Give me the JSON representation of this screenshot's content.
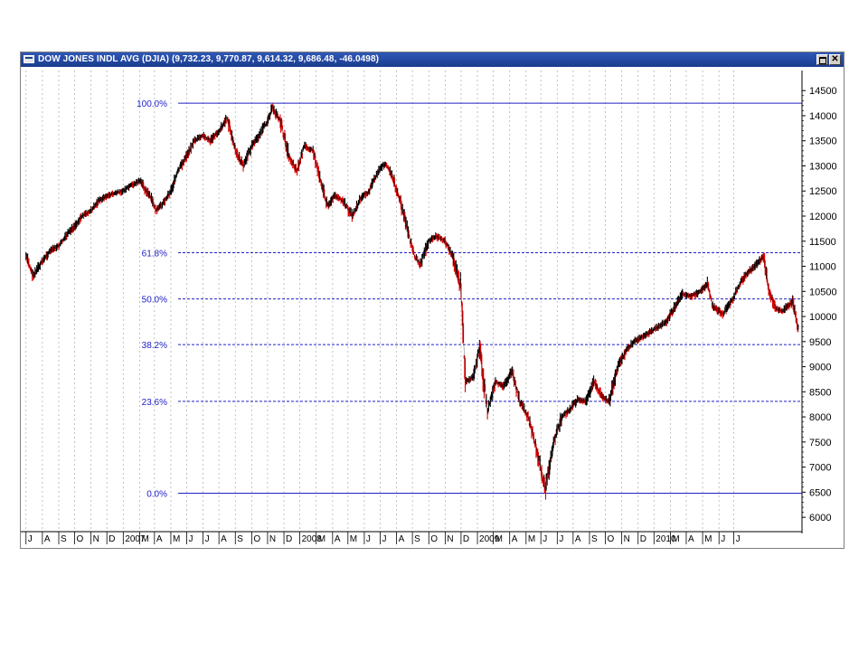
{
  "window": {
    "title": "DOW JONES INDL AVG (DJIA) (9,732.23, 9,770.87, 9,614.32, 9,686.48, -46.0498)",
    "restore_icon": "restore-window-icon",
    "close_icon": "close-icon",
    "close_glyph": "✕"
  },
  "colors": {
    "title_bar": "#1c3c8e",
    "up_candle": "#000000",
    "down_candle": "#e00000",
    "fib_line": "#2020c8",
    "fib_label": "#2020c8",
    "grid": "#b4b4b4"
  },
  "chart_data": {
    "type": "line",
    "title": "",
    "xlabel": "",
    "ylabel": "",
    "ylim": [
      5750,
      14900
    ],
    "yticks": [
      6000,
      6500,
      7000,
      7500,
      8000,
      8500,
      9000,
      9500,
      10000,
      10500,
      11000,
      11500,
      12000,
      12500,
      13000,
      13500,
      14000,
      14500
    ],
    "x_tick_labels": [
      "J",
      "A",
      "S",
      "O",
      "N",
      "D",
      "2007",
      "M",
      "A",
      "M",
      "J",
      "J",
      "A",
      "S",
      "O",
      "N",
      "D",
      "2008",
      "M",
      "A",
      "M",
      "J",
      "J",
      "A",
      "S",
      "O",
      "N",
      "D",
      "2009",
      "M",
      "A",
      "M",
      "J",
      "J",
      "A",
      "S",
      "O",
      "N",
      "D",
      "2010",
      "M",
      "A",
      "M",
      "J",
      "J"
    ],
    "grid": "vertical dashed at each month",
    "fib_levels": [
      {
        "label": "100.0%",
        "value": 14250,
        "style": "solid"
      },
      {
        "label": "61.8%",
        "value": 11270,
        "style": "dashed"
      },
      {
        "label": "50.0%",
        "value": 10350,
        "style": "dashed"
      },
      {
        "label": "38.2%",
        "value": 9440,
        "style": "dashed"
      },
      {
        "label": "23.6%",
        "value": 8310,
        "style": "dashed"
      },
      {
        "label": "0.0%",
        "value": 6480,
        "style": "solid"
      }
    ],
    "series": [
      {
        "x": [
          "2006-07-01",
          "2006-07-15",
          "2006-08-01",
          "2006-08-15",
          "2006-09-01",
          "2006-09-15",
          "2006-10-01",
          "2006-10-15",
          "2006-11-01",
          "2006-11-15",
          "2006-12-01",
          "2006-12-15",
          "2007-01-01",
          "2007-01-15",
          "2007-02-01",
          "2007-02-20",
          "2007-03-05",
          "2007-03-20",
          "2007-04-01",
          "2007-04-15",
          "2007-05-01",
          "2007-05-15",
          "2007-06-01",
          "2007-06-15",
          "2007-07-01",
          "2007-07-17",
          "2007-08-01",
          "2007-08-16",
          "2007-09-01",
          "2007-09-15",
          "2007-10-01",
          "2007-10-10",
          "2007-10-25",
          "2007-11-10",
          "2007-11-26",
          "2007-12-10",
          "2007-12-26",
          "2008-01-10",
          "2008-01-22",
          "2008-02-05",
          "2008-02-20",
          "2008-03-10",
          "2008-03-25",
          "2008-04-10",
          "2008-04-25",
          "2008-05-10",
          "2008-05-20",
          "2008-06-05",
          "2008-06-20",
          "2008-07-05",
          "2008-07-15",
          "2008-08-01",
          "2008-08-15",
          "2008-09-01",
          "2008-09-15",
          "2008-09-30",
          "2008-10-10",
          "2008-10-25",
          "2008-11-05",
          "2008-11-20",
          "2008-12-05",
          "2008-12-20",
          "2009-01-05",
          "2009-01-20",
          "2009-02-05",
          "2009-02-20",
          "2009-03-09",
          "2009-03-25",
          "2009-04-10",
          "2009-04-25",
          "2009-05-10",
          "2009-05-25",
          "2009-06-10",
          "2009-06-25",
          "2009-07-08",
          "2009-07-25",
          "2009-08-10",
          "2009-08-25",
          "2009-09-10",
          "2009-09-25",
          "2009-10-10",
          "2009-10-25",
          "2009-11-10",
          "2009-11-25",
          "2009-12-10",
          "2009-12-28",
          "2010-01-10",
          "2010-01-20",
          "2010-02-08",
          "2010-02-25",
          "2010-03-10",
          "2010-03-25",
          "2010-04-10",
          "2010-04-26",
          "2010-05-07",
          "2010-05-20",
          "2010-06-01",
          "2010-06-20",
          "2010-07-02"
        ],
        "values": [
          11200,
          10800,
          11100,
          11300,
          11400,
          11600,
          11800,
          12000,
          12100,
          12300,
          12400,
          12450,
          12500,
          12600,
          12700,
          12400,
          12100,
          12300,
          12500,
          12900,
          13200,
          13500,
          13600,
          13500,
          13700,
          13950,
          13300,
          13000,
          13400,
          13600,
          13900,
          14160,
          13900,
          13200,
          12900,
          13400,
          13300,
          12700,
          12200,
          12400,
          12300,
          12000,
          12350,
          12500,
          12850,
          13050,
          12900,
          12400,
          11800,
          11200,
          11050,
          11500,
          11600,
          11500,
          11200,
          10600,
          8700,
          8800,
          9400,
          8100,
          8700,
          8600,
          8900,
          8300,
          8000,
          7400,
          6550,
          7500,
          8000,
          8150,
          8350,
          8300,
          8700,
          8400,
          8300,
          9000,
          9350,
          9500,
          9600,
          9700,
          9800,
          9900,
          10200,
          10450,
          10400,
          10500,
          10650,
          10200,
          10050,
          10300,
          10600,
          10850,
          11000,
          11200,
          10500,
          10150,
          10100,
          10300,
          9690
        ]
      }
    ]
  }
}
